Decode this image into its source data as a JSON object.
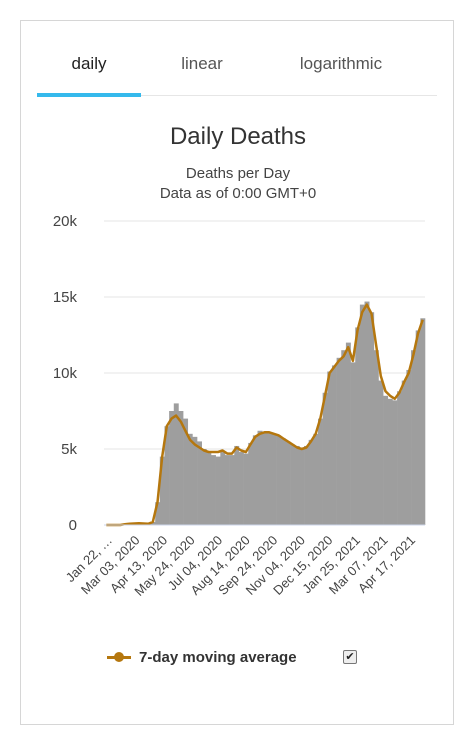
{
  "tabs": [
    {
      "label": "daily"
    },
    {
      "label": "linear"
    },
    {
      "label": "logarithmic"
    }
  ],
  "active_tab": 0,
  "colors": {
    "accent": "#35b9ec",
    "bars": "#9e9e9e",
    "avg_line": "#b5770e"
  },
  "legend": {
    "label": "7-day moving average",
    "checked": true,
    "check_glyph": "✔"
  },
  "chart_data": {
    "type": "bar",
    "title": "Daily Deaths",
    "subtitle": "Deaths per Day",
    "subtitle2": "Data as of 0:00 GMT+0",
    "xlabel": "",
    "ylabel": "",
    "ylim": [
      0,
      20000
    ],
    "y_ticks": [
      {
        "v": 0,
        "label": "0"
      },
      {
        "v": 5000,
        "label": "5k"
      },
      {
        "v": 10000,
        "label": "10k"
      },
      {
        "v": 15000,
        "label": "15k"
      },
      {
        "v": 20000,
        "label": "20k"
      }
    ],
    "x_ticks": [
      "Jan 22, …",
      "Mar 03, 2020",
      "Apr 13, 2020",
      "May 24, 2020",
      "Jul 04, 2020",
      "Aug 14, 2020",
      "Sep 24, 2020",
      "Nov 04, 2020",
      "Dec 15, 2020",
      "Jan 25, 2021",
      "Mar 07, 2021",
      "Apr 17, 2021"
    ],
    "grid": true,
    "series": [
      {
        "type": "bar",
        "values": [
          0,
          0,
          0,
          0,
          50,
          80,
          100,
          120,
          100,
          80,
          200,
          1500,
          4500,
          6500,
          7500,
          8000,
          7500,
          7000,
          6000,
          5800,
          5500,
          5000,
          4800,
          4600,
          4500,
          4800,
          4600,
          4600,
          5200,
          4800,
          4700,
          5400,
          5900,
          6200,
          6100,
          6100,
          6000,
          5900,
          5700,
          5500,
          5300,
          5200,
          5100,
          5200,
          5600,
          6000,
          7000,
          8700,
          10100,
          10500,
          11000,
          11500,
          12000,
          10700,
          13000,
          14500,
          14700,
          14000,
          11500,
          9500,
          8500,
          8300,
          8200,
          8800,
          9500,
          10200,
          11500,
          12800,
          13600
        ]
      },
      {
        "name": "7-day moving average",
        "type": "line",
        "values": [
          0,
          0,
          0,
          0,
          50,
          80,
          100,
          120,
          100,
          80,
          200,
          1500,
          4500,
          6500,
          7000,
          7200,
          6800,
          6200,
          5600,
          5300,
          5100,
          4900,
          4800,
          4800,
          4800,
          4900,
          4700,
          4700,
          5100,
          4900,
          4800,
          5300,
          5800,
          6000,
          6100,
          6100,
          6000,
          5900,
          5700,
          5500,
          5300,
          5100,
          5000,
          5100,
          5500,
          6000,
          7000,
          8500,
          10000,
          10400,
          10800,
          11100,
          11700,
          10800,
          12800,
          14000,
          14500,
          13900,
          11800,
          9800,
          8800,
          8500,
          8300,
          8700,
          9400,
          10000,
          11200,
          12600,
          13500
        ]
      }
    ]
  }
}
